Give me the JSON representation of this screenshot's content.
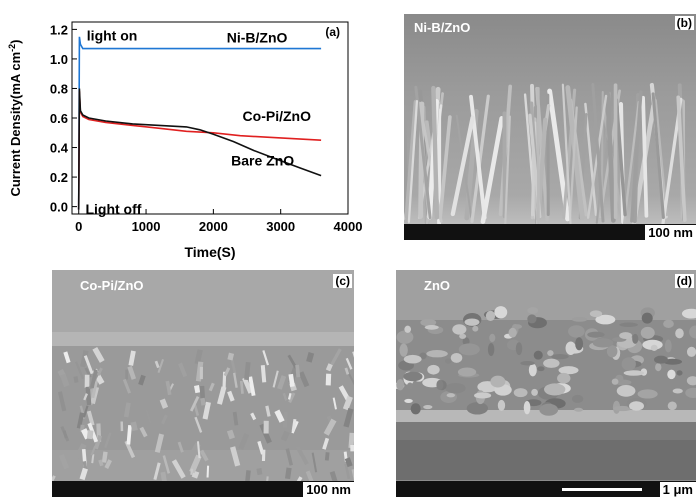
{
  "chart_data": {
    "type": "line",
    "panel_letter": "(a)",
    "xlabel": "Time(S)",
    "ylabel": "Current Density(mA cm",
    "ylabel_sup": "-2",
    "ylabel_close": ")",
    "xlim": [
      -100,
      4000
    ],
    "ylim": [
      -0.05,
      1.25
    ],
    "xticks": [
      "0",
      "1000",
      "2000",
      "3000",
      "4000"
    ],
    "yticks": [
      "0.0",
      "0.2",
      "0.4",
      "0.6",
      "0.8",
      "1.0",
      "1.2"
    ],
    "annotations": [
      {
        "text": "light on",
        "x": 120,
        "y": 1.13
      },
      {
        "text": "Light off",
        "x": 100,
        "y": -0.03
      }
    ],
    "series": [
      {
        "name": "Ni-B/ZnO",
        "color": "#1f77d4",
        "x": [
          0,
          10,
          25,
          60,
          150,
          300,
          600,
          1000,
          1500,
          2000,
          2500,
          3000,
          3600
        ],
        "y": [
          -0.02,
          1.15,
          1.1,
          1.07,
          1.07,
          1.07,
          1.07,
          1.07,
          1.07,
          1.07,
          1.07,
          1.07,
          1.07
        ]
      },
      {
        "name": "Co-Pi/ZnO",
        "color": "#e02020",
        "x": [
          0,
          10,
          25,
          60,
          150,
          400,
          800,
          1200,
          1600,
          2000,
          2400,
          2800,
          3200,
          3600
        ],
        "y": [
          -0.02,
          0.78,
          0.64,
          0.61,
          0.59,
          0.57,
          0.55,
          0.53,
          0.51,
          0.5,
          0.48,
          0.47,
          0.46,
          0.45
        ]
      },
      {
        "name": "Bare ZnO",
        "color": "#111111",
        "x": [
          0,
          10,
          25,
          60,
          150,
          400,
          800,
          1200,
          1600,
          1800,
          2000,
          2300,
          2600,
          3000,
          3300,
          3600
        ],
        "y": [
          -0.02,
          0.8,
          0.65,
          0.62,
          0.6,
          0.58,
          0.56,
          0.55,
          0.54,
          0.52,
          0.49,
          0.44,
          0.38,
          0.31,
          0.26,
          0.21
        ]
      }
    ]
  },
  "panels": {
    "b": {
      "label": "Ni-B/ZnO",
      "letter": "(b)",
      "scale": "100 nm"
    },
    "c": {
      "label": "Co-Pi/ZnO",
      "letter": "(c)",
      "scale": "100 nm"
    },
    "d": {
      "label": "ZnO",
      "letter": "(d)",
      "scale": "1 μm"
    }
  }
}
